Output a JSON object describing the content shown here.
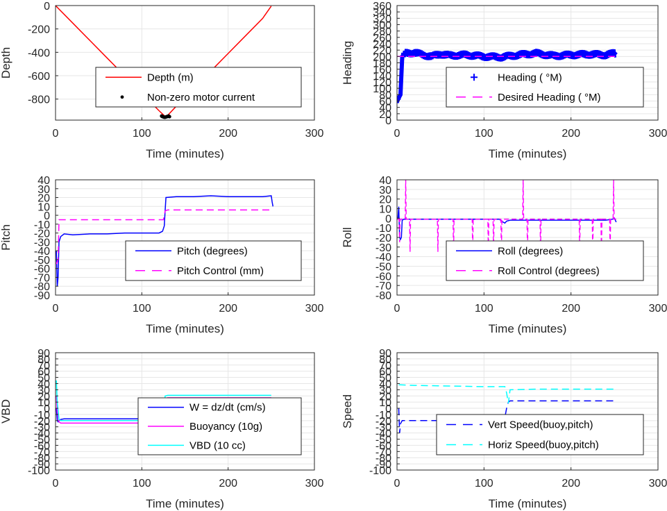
{
  "chart_data": [
    {
      "id": "depth",
      "type": "line",
      "xlabel": "Time (minutes)",
      "ylabel": "Depth",
      "xlim": [
        0,
        300
      ],
      "ylim": [
        -980,
        0
      ],
      "xticks": [
        0,
        100,
        200,
        300
      ],
      "yticks": [
        0,
        -200,
        -400,
        -600,
        -800
      ],
      "grid": true,
      "legend_placement": "center",
      "series": [
        {
          "name": "Depth (m)",
          "color": "#ff0000",
          "style": "solid",
          "x": [
            0,
            20,
            40,
            60,
            80,
            100,
            120,
            128,
            140,
            160,
            180,
            200,
            220,
            240,
            250
          ],
          "y": [
            0,
            -150,
            -300,
            -450,
            -600,
            -750,
            -900,
            -955,
            -860,
            -710,
            -560,
            -410,
            -260,
            -110,
            -5
          ]
        },
        {
          "name": "Non-zero motor current",
          "color": "#000000",
          "style": "dots",
          "x": [
            123,
            124,
            125,
            126,
            127,
            128,
            129,
            130,
            131,
            132
          ],
          "y": [
            -945,
            -950,
            -952,
            -955,
            -955,
            -953,
            -950,
            -948,
            -945,
            -950
          ]
        }
      ]
    },
    {
      "id": "heading",
      "type": "line",
      "xlabel": "Time (minutes)",
      "ylabel": "Heading",
      "xlim": [
        0,
        300
      ],
      "ylim": [
        0,
        360
      ],
      "xticks": [
        0,
        100,
        200,
        300
      ],
      "yticks": [
        0,
        20,
        40,
        60,
        80,
        100,
        120,
        140,
        160,
        180,
        200,
        220,
        240,
        260,
        280,
        300,
        320,
        340,
        360
      ],
      "grid": true,
      "legend_placement": "center-right",
      "series": [
        {
          "name": "Heading ( °M)",
          "color": "#0000ff",
          "style": "band",
          "x": [
            0,
            2,
            4,
            6,
            8,
            10,
            20,
            30,
            40,
            50,
            60,
            80,
            100,
            120,
            140,
            160,
            180,
            200,
            220,
            240,
            250,
            252
          ],
          "y": [
            60,
            70,
            80,
            200,
            205,
            210,
            212,
            205,
            200,
            208,
            203,
            205,
            200,
            198,
            205,
            210,
            202,
            205,
            207,
            205,
            210,
            205
          ],
          "spread": 14
        },
        {
          "name": "Desired Heading ( °M)",
          "color": "#ff00ff",
          "style": "dashed",
          "x": [
            0,
            252
          ],
          "y": [
            200,
            200
          ]
        }
      ]
    },
    {
      "id": "pitch",
      "type": "line",
      "xlabel": "Time (minutes)",
      "ylabel": "Pitch",
      "xlim": [
        0,
        300
      ],
      "ylim": [
        -90,
        40
      ],
      "xticks": [
        0,
        100,
        200,
        300
      ],
      "yticks": [
        40,
        30,
        20,
        10,
        0,
        -10,
        -20,
        -30,
        -40,
        -50,
        -60,
        -70,
        -80,
        -90
      ],
      "grid": true,
      "legend_placement": "center-right",
      "series": [
        {
          "name": "Pitch (degrees)",
          "color": "#0000ff",
          "style": "solid",
          "x": [
            1,
            2,
            3,
            4,
            6,
            10,
            20,
            40,
            60,
            80,
            100,
            120,
            124,
            126,
            127,
            128,
            140,
            160,
            180,
            200,
            220,
            240,
            250,
            251,
            252
          ],
          "y": [
            -40,
            -80,
            -70,
            -30,
            -24,
            -21,
            -22,
            -21,
            -21,
            -20,
            -20,
            -20,
            -18,
            -12,
            5,
            20,
            21,
            21,
            22,
            21,
            21,
            21,
            22,
            15,
            10
          ]
        },
        {
          "name": "Pitch Control (mm)",
          "color": "#ff00ff",
          "style": "dashed",
          "x": [
            1,
            3,
            4,
            6,
            50,
            100,
            125,
            127,
            130,
            200,
            252
          ],
          "y": [
            -55,
            -50,
            -5,
            -5,
            -5,
            -5,
            -5,
            5,
            6,
            6,
            6
          ]
        }
      ]
    },
    {
      "id": "roll",
      "type": "line",
      "xlabel": "Time (minutes)",
      "ylabel": "Roll",
      "xlim": [
        0,
        300
      ],
      "ylim": [
        -80,
        40
      ],
      "xticks": [
        0,
        100,
        200,
        300
      ],
      "yticks": [
        40,
        30,
        20,
        10,
        0,
        -10,
        -20,
        -30,
        -40,
        -50,
        -60,
        -70,
        -80
      ],
      "grid": true,
      "legend_placement": "bottom-right",
      "series": [
        {
          "name": "Roll (degrees)",
          "color": "#0000ff",
          "style": "solid",
          "x": [
            1,
            2,
            3,
            4,
            5,
            6,
            8,
            10,
            40,
            80,
            100,
            118,
            120,
            124,
            126,
            130,
            160,
            200,
            240,
            248,
            250,
            252
          ],
          "y": [
            0,
            12,
            -20,
            -22,
            -20,
            -2,
            -1,
            -1,
            -1,
            -1,
            -1,
            -1,
            -3,
            -5,
            -3,
            -2,
            -2,
            -2,
            -2,
            -1,
            0,
            -4
          ]
        },
        {
          "name": "Roll Control (degrees)",
          "color": "#ff00ff",
          "style": "spikes",
          "x": [
            3,
            10,
            15,
            47,
            65,
            87,
            105,
            111,
            120,
            145,
            150,
            165,
            210,
            225,
            235,
            245,
            249
          ],
          "y": [
            -25,
            40,
            -35,
            -35,
            -35,
            -35,
            -35,
            -35,
            -35,
            40,
            -35,
            -35,
            -35,
            -35,
            -35,
            -35,
            40
          ],
          "baseline": -1
        }
      ]
    },
    {
      "id": "vbd",
      "type": "line",
      "xlabel": "Time (minutes)",
      "ylabel": "VBD",
      "xlim": [
        0,
        300
      ],
      "ylim": [
        -100,
        90
      ],
      "xticks": [
        0,
        100,
        200,
        300
      ],
      "yticks": [
        90,
        80,
        70,
        60,
        50,
        40,
        30,
        20,
        10,
        0,
        -10,
        -20,
        -30,
        -40,
        -50,
        -60,
        -70,
        -80,
        -90,
        -100
      ],
      "grid": true,
      "legend_placement": "center-right",
      "series": [
        {
          "name": "W = dz/dt (cm/s)",
          "color": "#0000ff",
          "style": "solid",
          "x": [
            1,
            2,
            3,
            4,
            6,
            10,
            40,
            80,
            120,
            124,
            126,
            128,
            130,
            160,
            200,
            250
          ],
          "y": [
            0,
            -20,
            -22,
            -20,
            -18,
            -17,
            -17,
            -17,
            -17,
            -17,
            -10,
            15,
            16,
            16,
            16,
            16
          ]
        },
        {
          "name": "Buoyancy (10g)",
          "color": "#ff00ff",
          "style": "solid",
          "x": [
            1,
            2,
            4,
            6,
            60,
            120,
            125,
            127,
            130,
            200,
            250
          ],
          "y": [
            20,
            -5,
            -22,
            -24,
            -24,
            -24,
            -20,
            16,
            17,
            17,
            17
          ]
        },
        {
          "name": "VBD (10 cc)",
          "color": "#00ffff",
          "style": "solid",
          "x": [
            1,
            2,
            4,
            6,
            60,
            120,
            125,
            127,
            130,
            200,
            250
          ],
          "y": [
            45,
            10,
            -18,
            -20,
            -20,
            -20,
            -15,
            20,
            21,
            21,
            21
          ]
        }
      ]
    },
    {
      "id": "speed",
      "type": "line",
      "xlabel": "Time (minutes)",
      "ylabel": "Speed",
      "xlim": [
        0,
        300
      ],
      "ylim": [
        -100,
        90
      ],
      "xticks": [
        0,
        100,
        200,
        300
      ],
      "yticks": [
        90,
        80,
        70,
        60,
        50,
        40,
        30,
        20,
        10,
        0,
        -10,
        -20,
        -30,
        -40,
        -50,
        -60,
        -70,
        -80,
        -90,
        -100
      ],
      "grid": true,
      "legend_placement": "bottom-right",
      "series": [
        {
          "name": "Vert Speed(buoy,pitch)",
          "color": "#0000ff",
          "style": "dashed",
          "x": [
            2,
            3,
            4,
            6,
            20,
            60,
            100,
            120,
            124,
            126,
            128,
            130,
            160,
            200,
            252
          ],
          "y": [
            0,
            -40,
            -25,
            -20,
            -20,
            -20,
            -20,
            -20,
            -15,
            0,
            10,
            12,
            12,
            12,
            12
          ]
        },
        {
          "name": "Horiz Speed(buoy,pitch)",
          "color": "#00ffff",
          "style": "dashed",
          "x": [
            2,
            4,
            20,
            60,
            100,
            124,
            126,
            128,
            130,
            160,
            200,
            252
          ],
          "y": [
            38,
            38,
            37,
            36,
            35,
            35,
            25,
            8,
            30,
            31,
            31,
            31
          ]
        }
      ]
    }
  ]
}
